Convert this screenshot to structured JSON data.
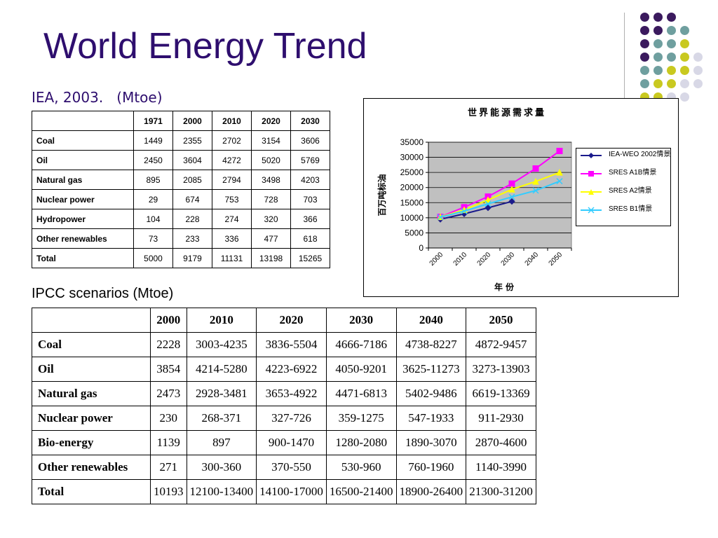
{
  "slide": {
    "title": "World Energy Trend",
    "subtitle_iea": "IEA, 2003.   (Mtoe)",
    "subtitle_ipcc": "IPCC scenarios (Mtoe)"
  },
  "decor": {
    "dot_colors": [
      "#3b1a5e",
      "#6f9f9f",
      "#c9c920",
      "#d8d8e6"
    ]
  },
  "iea_table": {
    "headers": [
      "",
      "1971",
      "2000",
      "2010",
      "2020",
      "2030"
    ],
    "rows": [
      {
        "label": "Coal",
        "values": [
          "1449",
          "2355",
          "2702",
          "3154",
          "3606"
        ]
      },
      {
        "label": "Oil",
        "values": [
          "2450",
          "3604",
          "4272",
          "5020",
          "5769"
        ]
      },
      {
        "label": "Natural gas",
        "values": [
          "895",
          "2085",
          "2794",
          "3498",
          "4203"
        ]
      },
      {
        "label": "Nuclear power",
        "values": [
          "29",
          "674",
          "753",
          "728",
          "703"
        ]
      },
      {
        "label": "Hydropower",
        "values": [
          "104",
          "228",
          "274",
          "320",
          "366"
        ]
      },
      {
        "label": "Other renewables",
        "values": [
          "73",
          "233",
          "336",
          "477",
          "618"
        ]
      },
      {
        "label": "Total",
        "values": [
          "5000",
          "9179",
          "11131",
          "13198",
          "15265"
        ]
      }
    ]
  },
  "ipcc_table": {
    "headers": [
      "",
      "2000",
      "2010",
      "2020",
      "2030",
      "2040",
      "2050"
    ],
    "rows": [
      {
        "label": "Coal",
        "values": [
          "2228",
          "3003-4235",
          "3836-5504",
          "4666-7186",
          "4738-8227",
          "4872-9457"
        ]
      },
      {
        "label": "Oil",
        "values": [
          "3854",
          "4214-5280",
          "4223-6922",
          "4050-9201",
          "3625-11273",
          "3273-13903"
        ]
      },
      {
        "label": "Natural gas",
        "values": [
          "2473",
          "2928-3481",
          "3653-4922",
          "4471-6813",
          "5402-9486",
          "6619-13369"
        ]
      },
      {
        "label": "Nuclear power",
        "values": [
          "230",
          "268-371",
          "327-726",
          "359-1275",
          "547-1933",
          "911-2930"
        ]
      },
      {
        "label": "Bio-energy",
        "values": [
          "1139",
          "897",
          "900-1470",
          "1280-2080",
          "1890-3070",
          "2870-4600"
        ]
      },
      {
        "label": "Other renewables",
        "values": [
          "271",
          "300-360",
          "370-550",
          "530-960",
          "760-1960",
          "1140-3990"
        ]
      },
      {
        "label": "Total",
        "values": [
          "10193",
          "12100-13400",
          "14100-17000",
          "16500-21400",
          "18900-26400",
          "21300-31200"
        ]
      }
    ]
  },
  "chart_data": {
    "type": "line",
    "title": "世界能源需求量",
    "xlabel": "年份",
    "ylabel": "百万吨标油",
    "categories": [
      "2000",
      "2010",
      "2020",
      "2030",
      "2040",
      "2050"
    ],
    "ylim": [
      0,
      35000
    ],
    "yticks": [
      "35000",
      "30000",
      "25000",
      "20000",
      "15000",
      "10000",
      "5000",
      "0"
    ],
    "grid": true,
    "legend_position": "right",
    "series": [
      {
        "name": "IEA-WEO 2002情景",
        "color": "#1a1a8c",
        "marker": "diamond",
        "points": [
          [
            0,
            9500
          ],
          [
            1,
            11300
          ],
          [
            2,
            13300
          ],
          [
            3,
            15400
          ]
        ]
      },
      {
        "name": "SRES A1B情景",
        "color": "#ff00ff",
        "marker": "square",
        "points": [
          [
            0,
            10300
          ],
          [
            1,
            13500
          ],
          [
            2,
            17000
          ],
          [
            3,
            21300
          ],
          [
            4,
            26300
          ],
          [
            5,
            32100
          ]
        ]
      },
      {
        "name": "SRES A2情景",
        "color": "#ffff00",
        "marker": "triangle",
        "points": [
          [
            0,
            10300
          ],
          [
            1,
            12600
          ],
          [
            2,
            15900
          ],
          [
            3,
            19400
          ],
          [
            4,
            22000
          ],
          [
            5,
            25000
          ]
        ]
      },
      {
        "name": "SRES B1情景",
        "color": "#33ccff",
        "marker": "x",
        "points": [
          [
            0,
            10200
          ],
          [
            1,
            12200
          ],
          [
            2,
            14600
          ],
          [
            3,
            16900
          ],
          [
            4,
            19000
          ],
          [
            5,
            22100
          ]
        ]
      }
    ]
  }
}
